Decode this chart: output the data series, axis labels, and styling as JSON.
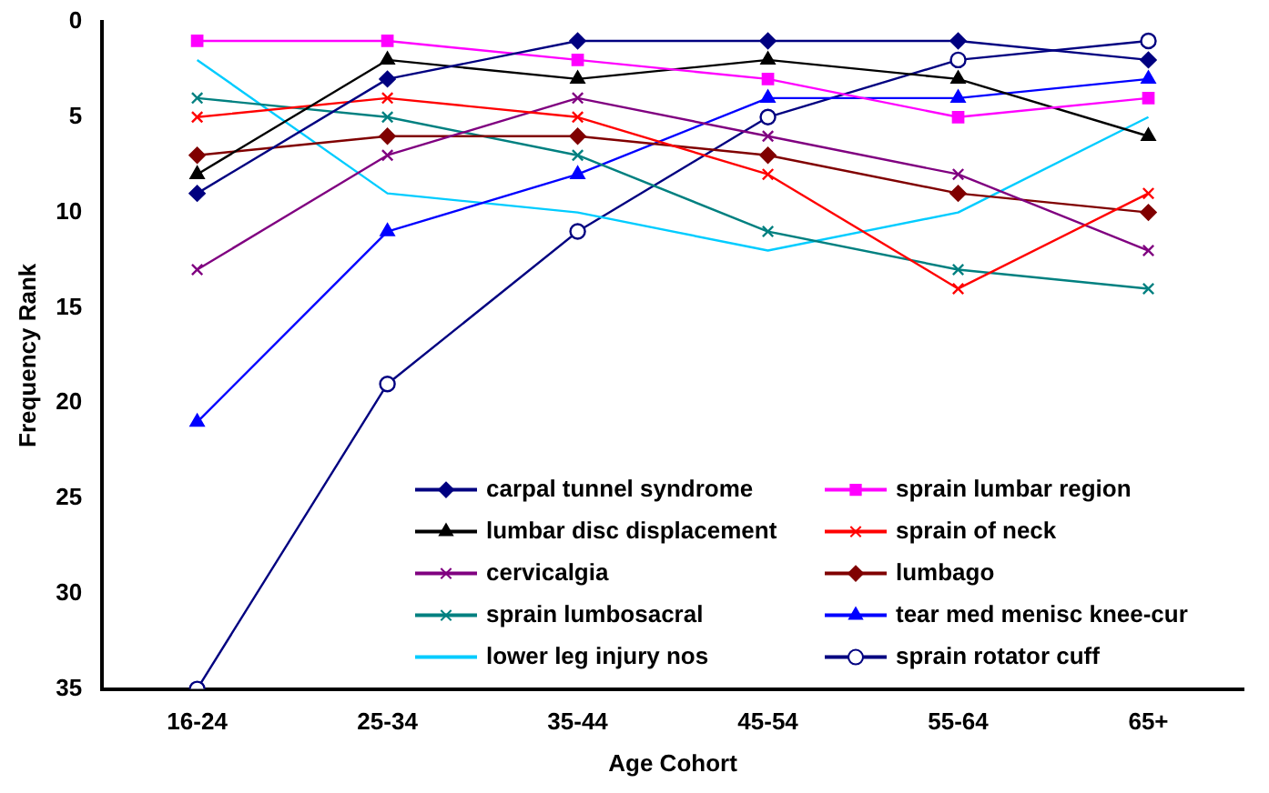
{
  "chart_data": {
    "type": "line",
    "xlabel": "Age Cohort",
    "ylabel": "Frequency Rank",
    "categories": [
      "16-24",
      "25-34",
      "35-44",
      "45-54",
      "55-64",
      "65+"
    ],
    "ylim": [
      35,
      0
    ],
    "yticks": [
      0,
      5,
      10,
      15,
      20,
      25,
      30,
      35
    ],
    "grid": false,
    "legend": "bottom right",
    "series": [
      {
        "name": "carpal tunnel syndrome",
        "color": "#000080",
        "marker": "diamond",
        "values": [
          9,
          3,
          1,
          1,
          1,
          2
        ]
      },
      {
        "name": "sprain lumbar region",
        "color": "#ff00ff",
        "marker": "square",
        "values": [
          1,
          1,
          2,
          3,
          5,
          4
        ]
      },
      {
        "name": "lumbar disc displacement",
        "color": "#000000",
        "marker": "triangle",
        "values": [
          8,
          2,
          3,
          2,
          3,
          6
        ]
      },
      {
        "name": "sprain of neck",
        "color": "#ff0000",
        "marker": "cross",
        "values": [
          5,
          4,
          5,
          8,
          14,
          9
        ]
      },
      {
        "name": "cervicalgia",
        "color": "#800080",
        "marker": "cross",
        "values": [
          13,
          7,
          4,
          6,
          8,
          12
        ]
      },
      {
        "name": "lumbago",
        "color": "#800000",
        "marker": "diamond",
        "values": [
          7,
          6,
          6,
          7,
          9,
          10
        ]
      },
      {
        "name": "sprain lumbosacral",
        "color": "#008080",
        "marker": "cross",
        "values": [
          4,
          5,
          7,
          11,
          13,
          14
        ]
      },
      {
        "name": "tear med menisc knee-cur",
        "color": "#0000ff",
        "marker": "triangle",
        "values": [
          21,
          11,
          8,
          4,
          4,
          3
        ]
      },
      {
        "name": "lower leg injury nos",
        "color": "#00ccff",
        "marker": "none",
        "values": [
          2,
          9,
          10,
          12,
          10,
          5
        ]
      },
      {
        "name": "sprain rotator cuff",
        "color": "#000080",
        "marker": "circle",
        "values": [
          35,
          19,
          11,
          5,
          2,
          1
        ]
      }
    ]
  }
}
